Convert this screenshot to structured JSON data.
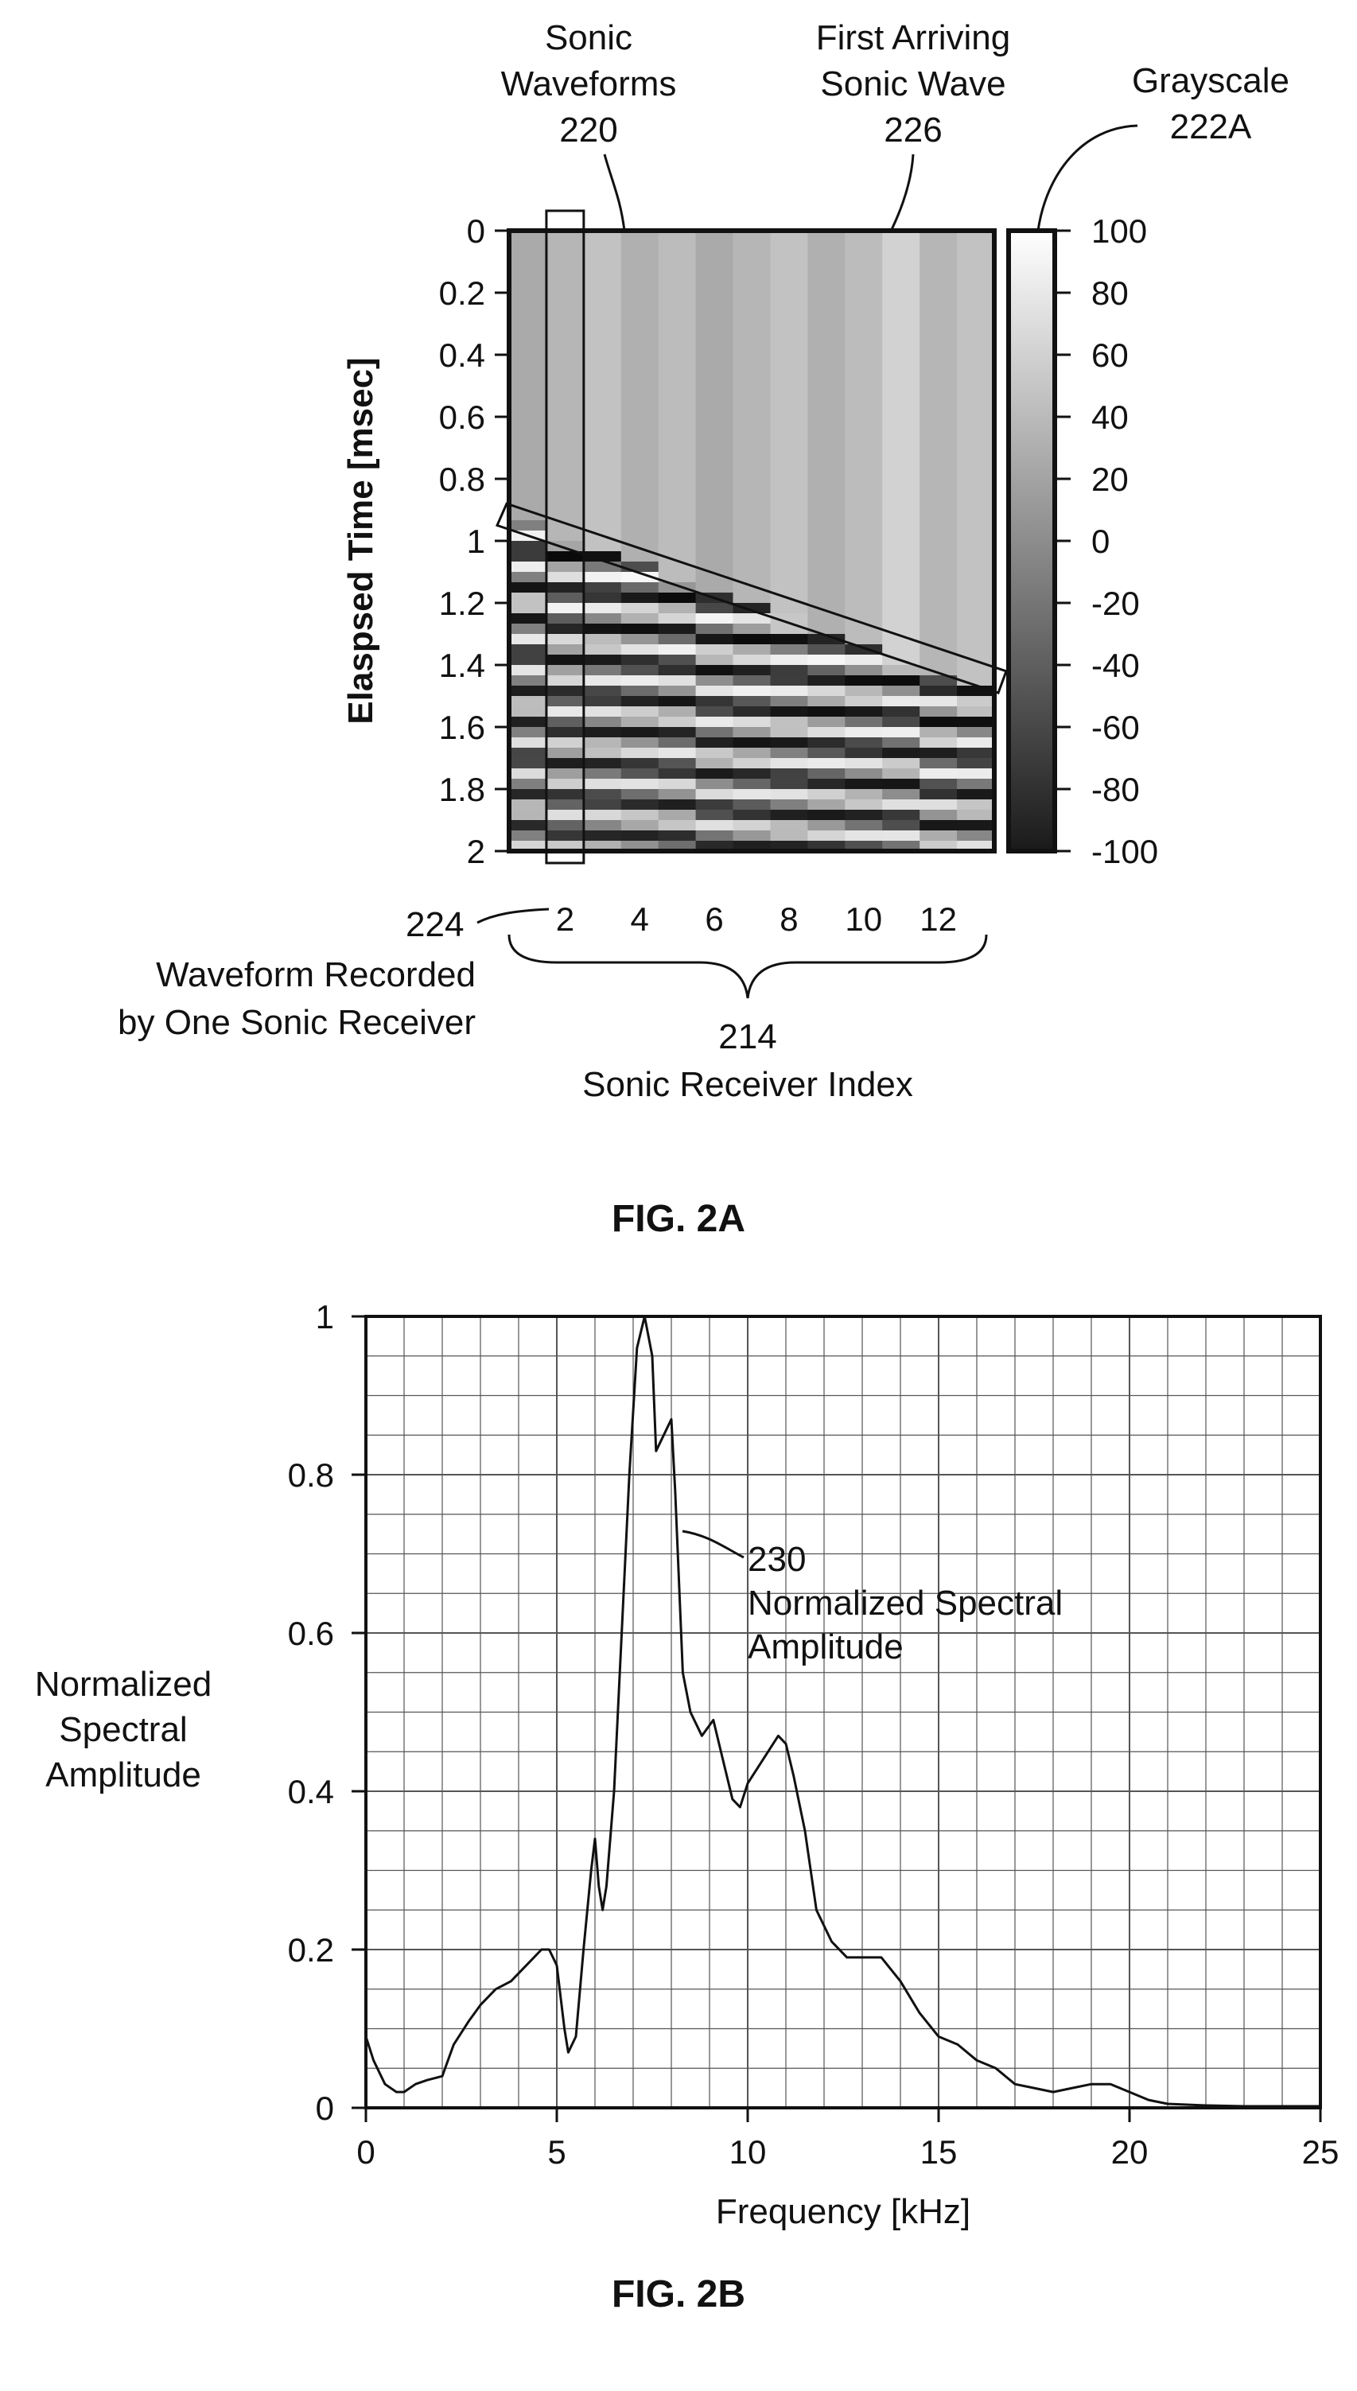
{
  "figures": {
    "fig2a": {
      "caption": "FIG. 2A",
      "annotations": {
        "sonic_waveforms": [
          "Sonic",
          "Waveforms",
          "220"
        ],
        "first_arriving": [
          "First Arriving",
          "Sonic Wave",
          "226"
        ],
        "grayscale": [
          "Grayscale",
          "222A"
        ],
        "waveform_recorded": [
          "Waveform Recorded",
          "by One Sonic Receiver"
        ],
        "ref_224": "224",
        "ref_214": "214"
      }
    },
    "fig2b": {
      "caption": "FIG. 2B",
      "annotations": {
        "curve_ref": [
          "230",
          "Normalized Spectral",
          "Amplitude"
        ]
      }
    }
  },
  "chart_data": [
    {
      "type": "heatmap",
      "ylabel": "Elaspsed Time [msec]",
      "xlabel": "Sonic Receiver Index",
      "y_ticks": [
        "0",
        "0.2",
        "0.4",
        "0.6",
        "0.8",
        "1",
        "1.2",
        "1.4",
        "1.6",
        "1.8",
        "2"
      ],
      "x_ticks": [
        "2",
        "4",
        "6",
        "8",
        "10",
        "12"
      ],
      "x_tick_values": [
        2,
        4,
        6,
        8,
        10,
        12
      ],
      "xlim": [
        0.5,
        13.5
      ],
      "ylim": [
        0,
        2
      ],
      "y_inverted": true,
      "receivers": 13,
      "first_arrival_msec": [
        0.95,
        1.0,
        1.04,
        1.08,
        1.12,
        1.17,
        1.21,
        1.25,
        1.29,
        1.33,
        1.37,
        1.42,
        1.46
      ],
      "colorbar": {
        "range": [
          -100,
          100
        ],
        "ticks": [
          "100",
          "80",
          "60",
          "40",
          "20",
          "0",
          "-20",
          "-40",
          "-60",
          "-80",
          "-100"
        ]
      },
      "highlight_receiver": 2,
      "first_arrival_band_msec": {
        "start": [
          0.95,
          0.88
        ],
        "end": [
          1.49,
          1.42
        ]
      }
    },
    {
      "type": "line",
      "ylabel": "Normalized\nSpectral\nAmplitude",
      "xlabel": "Frequency [kHz]",
      "xlim": [
        0,
        25
      ],
      "ylim": [
        0,
        1
      ],
      "x_ticks": [
        "0",
        "5",
        "10",
        "15",
        "20",
        "25"
      ],
      "y_ticks": [
        "0",
        "0.2",
        "0.4",
        "0.6",
        "0.8",
        "1"
      ],
      "grid": true,
      "series": [
        {
          "x": [
            0,
            0.2,
            0.5,
            0.8,
            1.0,
            1.3,
            1.6,
            2.0,
            2.3,
            2.7,
            3.0,
            3.4,
            3.8,
            4.2,
            4.6,
            4.8,
            5.0,
            5.2,
            5.3,
            5.5,
            5.7,
            5.9,
            6.0,
            6.1,
            6.2,
            6.3,
            6.5,
            6.7,
            6.9,
            7.1,
            7.2,
            7.3,
            7.5,
            7.6,
            7.8,
            8.0,
            8.1,
            8.3,
            8.5,
            8.8,
            9.1,
            9.3,
            9.6,
            9.8,
            10.0,
            10.4,
            10.8,
            11.0,
            11.2,
            11.5,
            11.8,
            12.2,
            12.6,
            13.0,
            13.5,
            14.0,
            14.5,
            15.0,
            15.5,
            16.0,
            16.5,
            17.0,
            17.5,
            18.0,
            18.5,
            19.0,
            19.5,
            20.0,
            20.5,
            21.0,
            22.0,
            23.0,
            24.0,
            25.0
          ],
          "y": [
            0.09,
            0.06,
            0.03,
            0.02,
            0.02,
            0.03,
            0.035,
            0.04,
            0.08,
            0.11,
            0.13,
            0.15,
            0.16,
            0.18,
            0.2,
            0.2,
            0.18,
            0.1,
            0.07,
            0.09,
            0.2,
            0.3,
            0.34,
            0.28,
            0.25,
            0.28,
            0.4,
            0.6,
            0.8,
            0.96,
            0.98,
            1.0,
            0.95,
            0.83,
            0.85,
            0.87,
            0.78,
            0.55,
            0.5,
            0.47,
            0.49,
            0.45,
            0.39,
            0.38,
            0.41,
            0.44,
            0.47,
            0.46,
            0.42,
            0.35,
            0.25,
            0.21,
            0.19,
            0.19,
            0.19,
            0.16,
            0.12,
            0.09,
            0.08,
            0.06,
            0.05,
            0.03,
            0.025,
            0.02,
            0.025,
            0.03,
            0.03,
            0.02,
            0.01,
            0.005,
            0.003,
            0.002,
            0.002,
            0.002
          ]
        }
      ]
    }
  ]
}
